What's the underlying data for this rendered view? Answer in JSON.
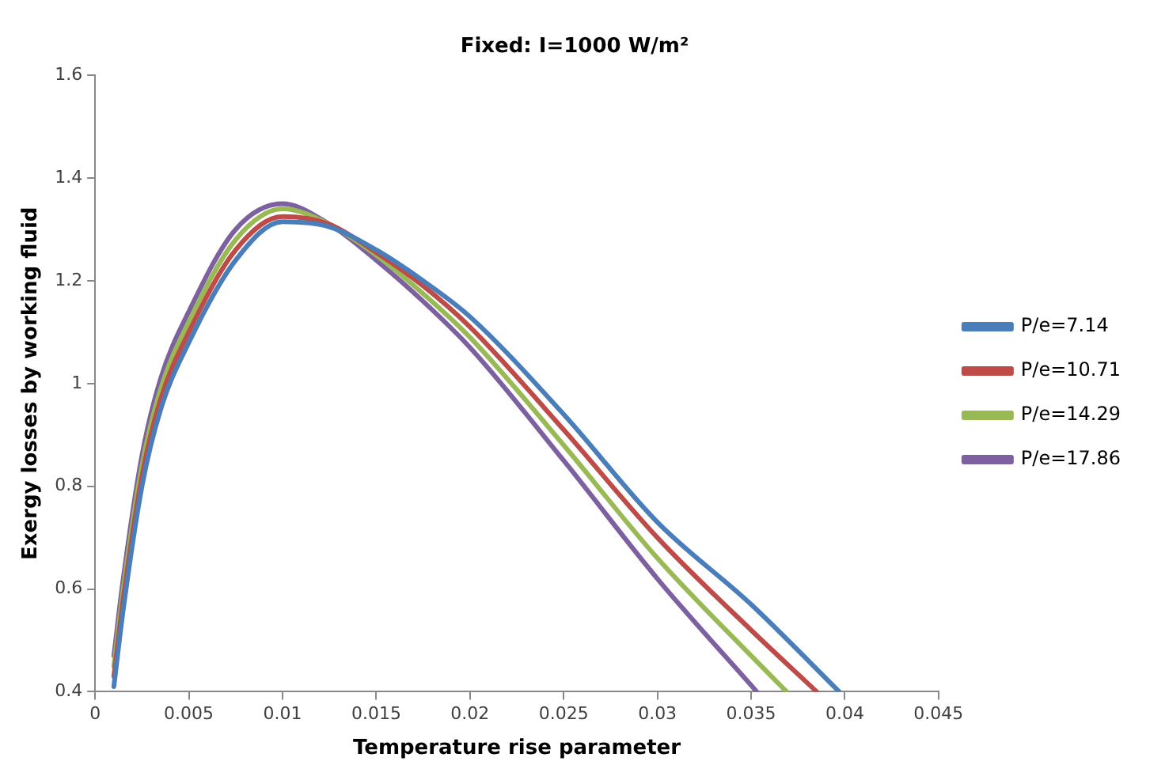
{
  "chart_data": {
    "type": "line",
    "title": "Fixed: I=1000 W/m²",
    "xlabel": "Temperature rise parameter",
    "ylabel": "Exergy losses by working fluid",
    "xlim": [
      0,
      0.045
    ],
    "xticks": [
      0,
      0.005,
      0.01,
      0.015,
      0.02,
      0.025,
      0.03,
      0.035,
      0.04,
      0.045
    ],
    "ylim": [
      0.4,
      1.6
    ],
    "yticks": [
      0.4,
      0.6,
      0.8,
      1,
      1.2,
      1.4,
      1.6
    ],
    "grid": false,
    "legend": "right",
    "series": [
      {
        "name": "P/e=7.14",
        "color": "#4a7ebb",
        "x": [
          0.001,
          0.0015,
          0.0025,
          0.0035,
          0.005,
          0.0075,
          0.01,
          0.0125,
          0.015,
          0.0175,
          0.02,
          0.025,
          0.03,
          0.035,
          0.0397
        ],
        "values": [
          0.41,
          0.56,
          0.8,
          0.95,
          1.08,
          1.24,
          1.315,
          1.305,
          1.26,
          1.2,
          1.13,
          0.94,
          0.73,
          0.57,
          0.4
        ]
      },
      {
        "name": "P/e=10.71",
        "color": "#be4b48",
        "x": [
          0.001,
          0.0015,
          0.0025,
          0.0035,
          0.005,
          0.0075,
          0.01,
          0.0125,
          0.015,
          0.0175,
          0.02,
          0.025,
          0.03,
          0.035,
          0.0385
        ],
        "values": [
          0.43,
          0.58,
          0.82,
          0.97,
          1.1,
          1.26,
          1.325,
          1.31,
          1.255,
          1.19,
          1.11,
          0.91,
          0.7,
          0.52,
          0.4
        ]
      },
      {
        "name": "P/e=14.29",
        "color": "#98b954",
        "x": [
          0.001,
          0.0015,
          0.0025,
          0.0035,
          0.005,
          0.0075,
          0.01,
          0.0125,
          0.015,
          0.0175,
          0.02,
          0.025,
          0.03,
          0.035,
          0.0369
        ],
        "values": [
          0.45,
          0.6,
          0.84,
          0.99,
          1.12,
          1.28,
          1.34,
          1.31,
          1.25,
          1.175,
          1.09,
          0.88,
          0.66,
          0.47,
          0.4
        ]
      },
      {
        "name": "P/e=17.86",
        "color": "#7d60a0",
        "x": [
          0.001,
          0.0015,
          0.0025,
          0.0035,
          0.005,
          0.0075,
          0.01,
          0.0125,
          0.015,
          0.0175,
          0.02,
          0.025,
          0.03,
          0.0353
        ],
        "values": [
          0.47,
          0.62,
          0.86,
          1.01,
          1.14,
          1.3,
          1.35,
          1.31,
          1.24,
          1.16,
          1.07,
          0.85,
          0.62,
          0.4
        ]
      }
    ]
  }
}
